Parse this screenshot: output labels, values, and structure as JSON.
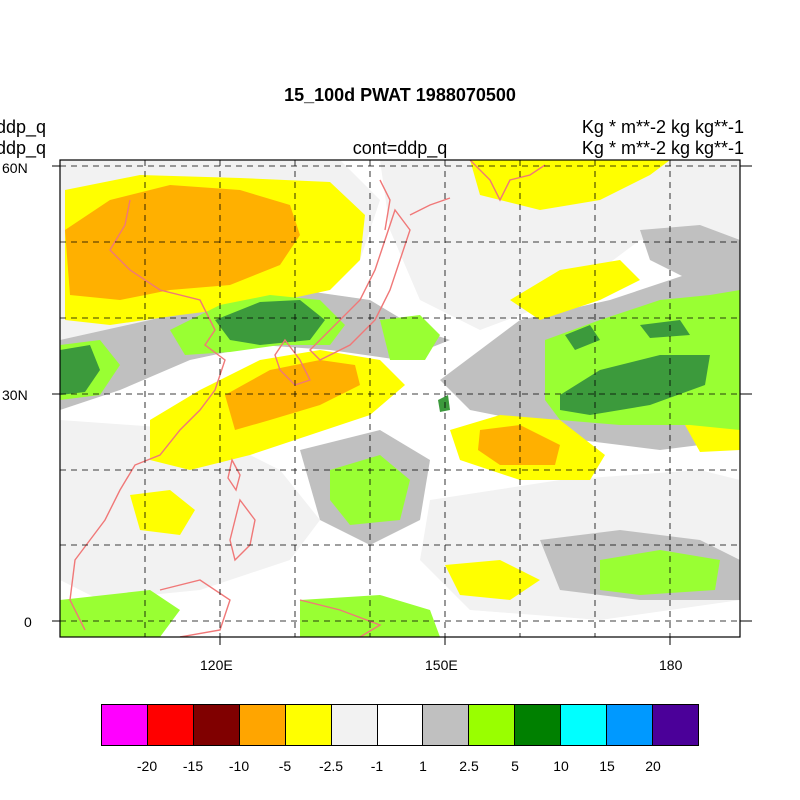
{
  "title": "15_100d PWAT  1988070500",
  "left_labels": [
    "ddp_q",
    "ddp_q"
  ],
  "center_label": "cont=ddp_q",
  "units_labels": [
    "Kg  * m**-2 kg kg**-1",
    "Kg  * m**-2 kg kg**-1"
  ],
  "lat_ticks": [
    "60N",
    "30N",
    "0"
  ],
  "lon_ticks": [
    "120E",
    "150E",
    "180"
  ],
  "colorbar": {
    "colors": [
      "#ff00ff",
      "#ff0000",
      "#800000",
      "#ffa500",
      "#ffff00",
      "#f2f2f2",
      "#ffffff",
      "#c0c0c0",
      "#99ff00",
      "#008000",
      "#00ffff",
      "#0099ff",
      "#4b0099"
    ],
    "labels": [
      "-20",
      "-15",
      "-10",
      "-5",
      "-2.5",
      "-1",
      "1",
      "2.5",
      "5",
      "10",
      "15",
      "20"
    ]
  }
}
